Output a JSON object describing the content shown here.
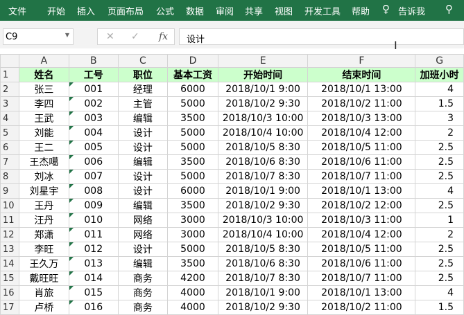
{
  "menu": [
    "文件",
    "开始",
    "插入",
    "页面布局",
    "公式",
    "数据",
    "审阅",
    "共享",
    "视图",
    "开发工具",
    "帮助",
    "告诉我"
  ],
  "formula_bar": {
    "name_box": "C9",
    "value": "设计",
    "fx": "fx"
  },
  "columns": [
    "A",
    "B",
    "C",
    "D",
    "E",
    "F",
    "G"
  ],
  "header": [
    "姓名",
    "工号",
    "职位",
    "基本工资",
    "开始时间",
    "结束时间",
    "加班小时"
  ],
  "rows": [
    [
      "张三",
      "001",
      "经理",
      "6000",
      "2018/10/1 9:00",
      "2018/10/1 13:00",
      "4"
    ],
    [
      "李四",
      "002",
      "主管",
      "5000",
      "2018/10/2 9:30",
      "2018/10/2 11:00",
      "1.5"
    ],
    [
      "王武",
      "003",
      "编辑",
      "3500",
      "2018/10/3 10:00",
      "2018/10/3 13:00",
      "3"
    ],
    [
      "刘能",
      "004",
      "设计",
      "5000",
      "2018/10/4 10:00",
      "2018/10/4 12:00",
      "2"
    ],
    [
      "王二",
      "005",
      "设计",
      "5000",
      "2018/10/5 8:30",
      "2018/10/5 11:00",
      "2.5"
    ],
    [
      "王杰噶",
      "006",
      "编辑",
      "3500",
      "2018/10/6 8:30",
      "2018/10/6 11:00",
      "2.5"
    ],
    [
      "刘冰",
      "007",
      "设计",
      "5000",
      "2018/10/7 8:30",
      "2018/10/7 11:00",
      "2.5"
    ],
    [
      "刘星宇",
      "008",
      "设计",
      "6000",
      "2018/10/1 9:00",
      "2018/10/1 13:00",
      "4"
    ],
    [
      "王丹",
      "009",
      "编辑",
      "3500",
      "2018/10/2 9:30",
      "2018/10/2 12:00",
      "2.5"
    ],
    [
      "汪丹",
      "010",
      "网络",
      "3000",
      "2018/10/3 10:00",
      "2018/10/3 11:00",
      "1"
    ],
    [
      "郑潇",
      "011",
      "网络",
      "3000",
      "2018/10/4 10:00",
      "2018/10/4 12:00",
      "2"
    ],
    [
      "李旺",
      "012",
      "设计",
      "5000",
      "2018/10/5 8:30",
      "2018/10/5 11:00",
      "2.5"
    ],
    [
      "王久万",
      "013",
      "编辑",
      "3500",
      "2018/10/6 8:30",
      "2018/10/6 11:00",
      "2.5"
    ],
    [
      "戴旺旺",
      "014",
      "商务",
      "4200",
      "2018/10/7 8:30",
      "2018/10/7 11:00",
      "2.5"
    ],
    [
      "肖旅",
      "015",
      "商务",
      "4000",
      "2018/10/1 9:00",
      "2018/10/1 13:00",
      "4"
    ],
    [
      "卢桥",
      "016",
      "商务",
      "4000",
      "2018/10/2 9:30",
      "2018/10/2 11:00",
      "1.5"
    ]
  ]
}
